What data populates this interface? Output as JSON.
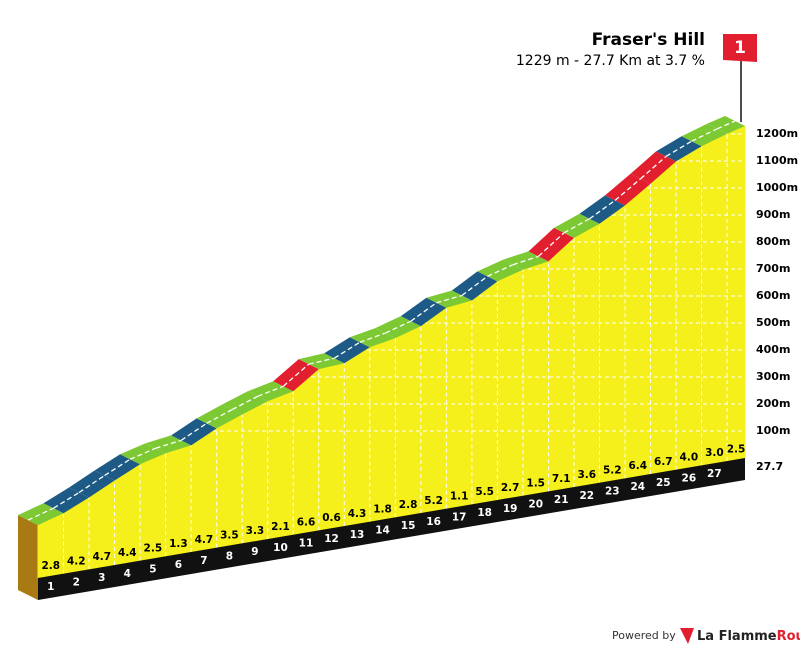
{
  "chart_data": {
    "type": "climb-profile",
    "title": "Fraser's Hill",
    "subtitle": "1229 m - 27.7 Km at 3.7 %",
    "flag": "1",
    "x": [
      1,
      2,
      3,
      4,
      5,
      6,
      7,
      8,
      9,
      10,
      11,
      12,
      13,
      14,
      15,
      16,
      17,
      18,
      19,
      20,
      21,
      22,
      23,
      24,
      25,
      26,
      27,
      27.7
    ],
    "values": [
      2.8,
      4.2,
      4.7,
      4.4,
      2.5,
      1.3,
      4.7,
      3.5,
      3.3,
      2.1,
      6.6,
      0.6,
      4.3,
      1.8,
      2.8,
      5.2,
      1.1,
      5.5,
      2.7,
      1.5,
      7.1,
      3.6,
      5.2,
      6.4,
      6.7,
      4.0,
      3.0,
      2.5
    ],
    "value_labels": [
      "2.8",
      "4.2",
      "4.7",
      "4.4",
      "2.5",
      "1.3",
      "4.7",
      "3.5",
      "3.3",
      "2.1",
      "6.6",
      "0.6",
      "4.3",
      "1.8",
      "2.8",
      "5.2",
      "1.1",
      "5.5",
      "2.7",
      "1.5",
      "7.1",
      "3.6",
      "5.2",
      "6.4",
      "6.7",
      "4.0",
      "3.0",
      "2.5"
    ],
    "start_elevation": 196,
    "ylim": [
      0,
      1200
    ],
    "yticks": [
      {
        "value": 100,
        "label": "100m"
      },
      {
        "value": 200,
        "label": "200m"
      },
      {
        "value": 300,
        "label": "300m"
      },
      {
        "value": 400,
        "label": "400m"
      },
      {
        "value": 500,
        "label": "500m"
      },
      {
        "value": 600,
        "label": "600m"
      },
      {
        "value": 700,
        "label": "700m"
      },
      {
        "value": 800,
        "label": "800m"
      },
      {
        "value": 900,
        "label": "900m"
      },
      {
        "value": 1000,
        "label": "1000m"
      },
      {
        "value": 1100,
        "label": "1100m"
      },
      {
        "value": 1200,
        "label": "1200m"
      }
    ],
    "gradient_colors": [
      {
        "from": 0,
        "color": "#7cc934"
      },
      {
        "from": 4,
        "color": "#1d5b86"
      },
      {
        "from": 6,
        "color": "#e21f2f"
      }
    ],
    "fill": "#f5ef1c",
    "grid": true
  },
  "footer": {
    "powered_by": "Powered by",
    "brand_1": "La Flamme",
    "brand_2": "Rouge"
  }
}
